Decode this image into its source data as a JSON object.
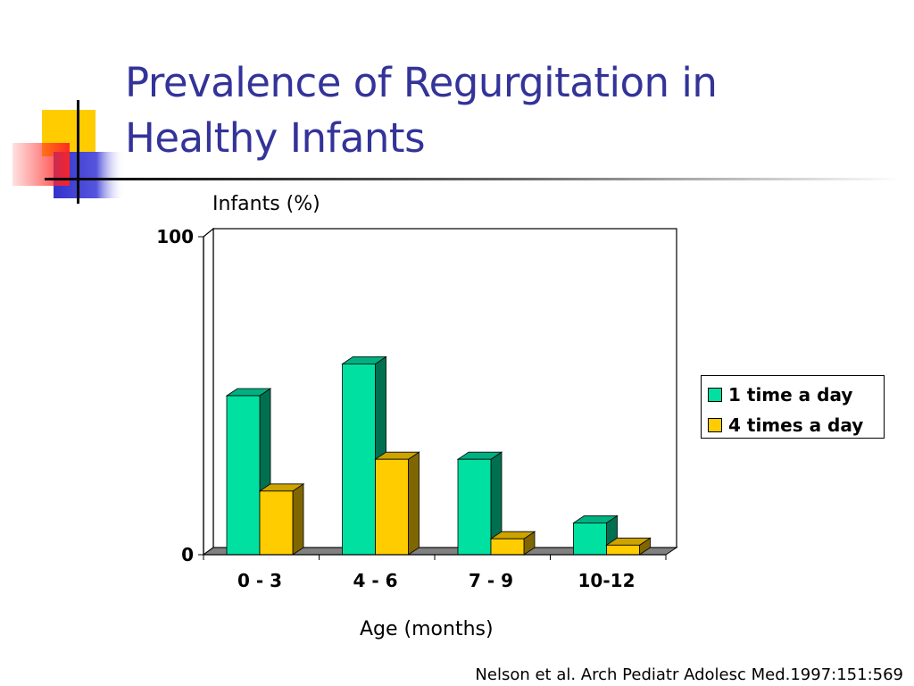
{
  "slide": {
    "title_lines": [
      "Prevalence of Regurgitation in",
      "Healthy Infants"
    ],
    "citation": "Nelson et al. Arch Pediatr Adolesc Med.1997:151:569"
  },
  "colors": {
    "title": "#333399",
    "series_1_front": "#00E0A0",
    "series_1_side": "#007050",
    "series_1_top": "#00B080",
    "series_2_front": "#FFCC00",
    "series_2_side": "#806600",
    "series_2_top": "#CCA300",
    "floor": "#808080"
  },
  "chart_data": {
    "type": "bar",
    "title": "",
    "xlabel": "Age (months)",
    "ylabel": "Infants (%)",
    "categories": [
      "0 - 3",
      "4 - 6",
      "7 - 9",
      "10-12"
    ],
    "series": [
      {
        "name": "1 time a day",
        "values": [
          50,
          60,
          30,
          10
        ]
      },
      {
        "name": "4 times a day",
        "values": [
          20,
          30,
          5,
          3
        ]
      }
    ],
    "ylim": [
      0,
      100
    ],
    "y_tick_labels": [
      "0",
      "100"
    ],
    "grid": false,
    "legend_position": "right",
    "style": "3d-clustered"
  }
}
